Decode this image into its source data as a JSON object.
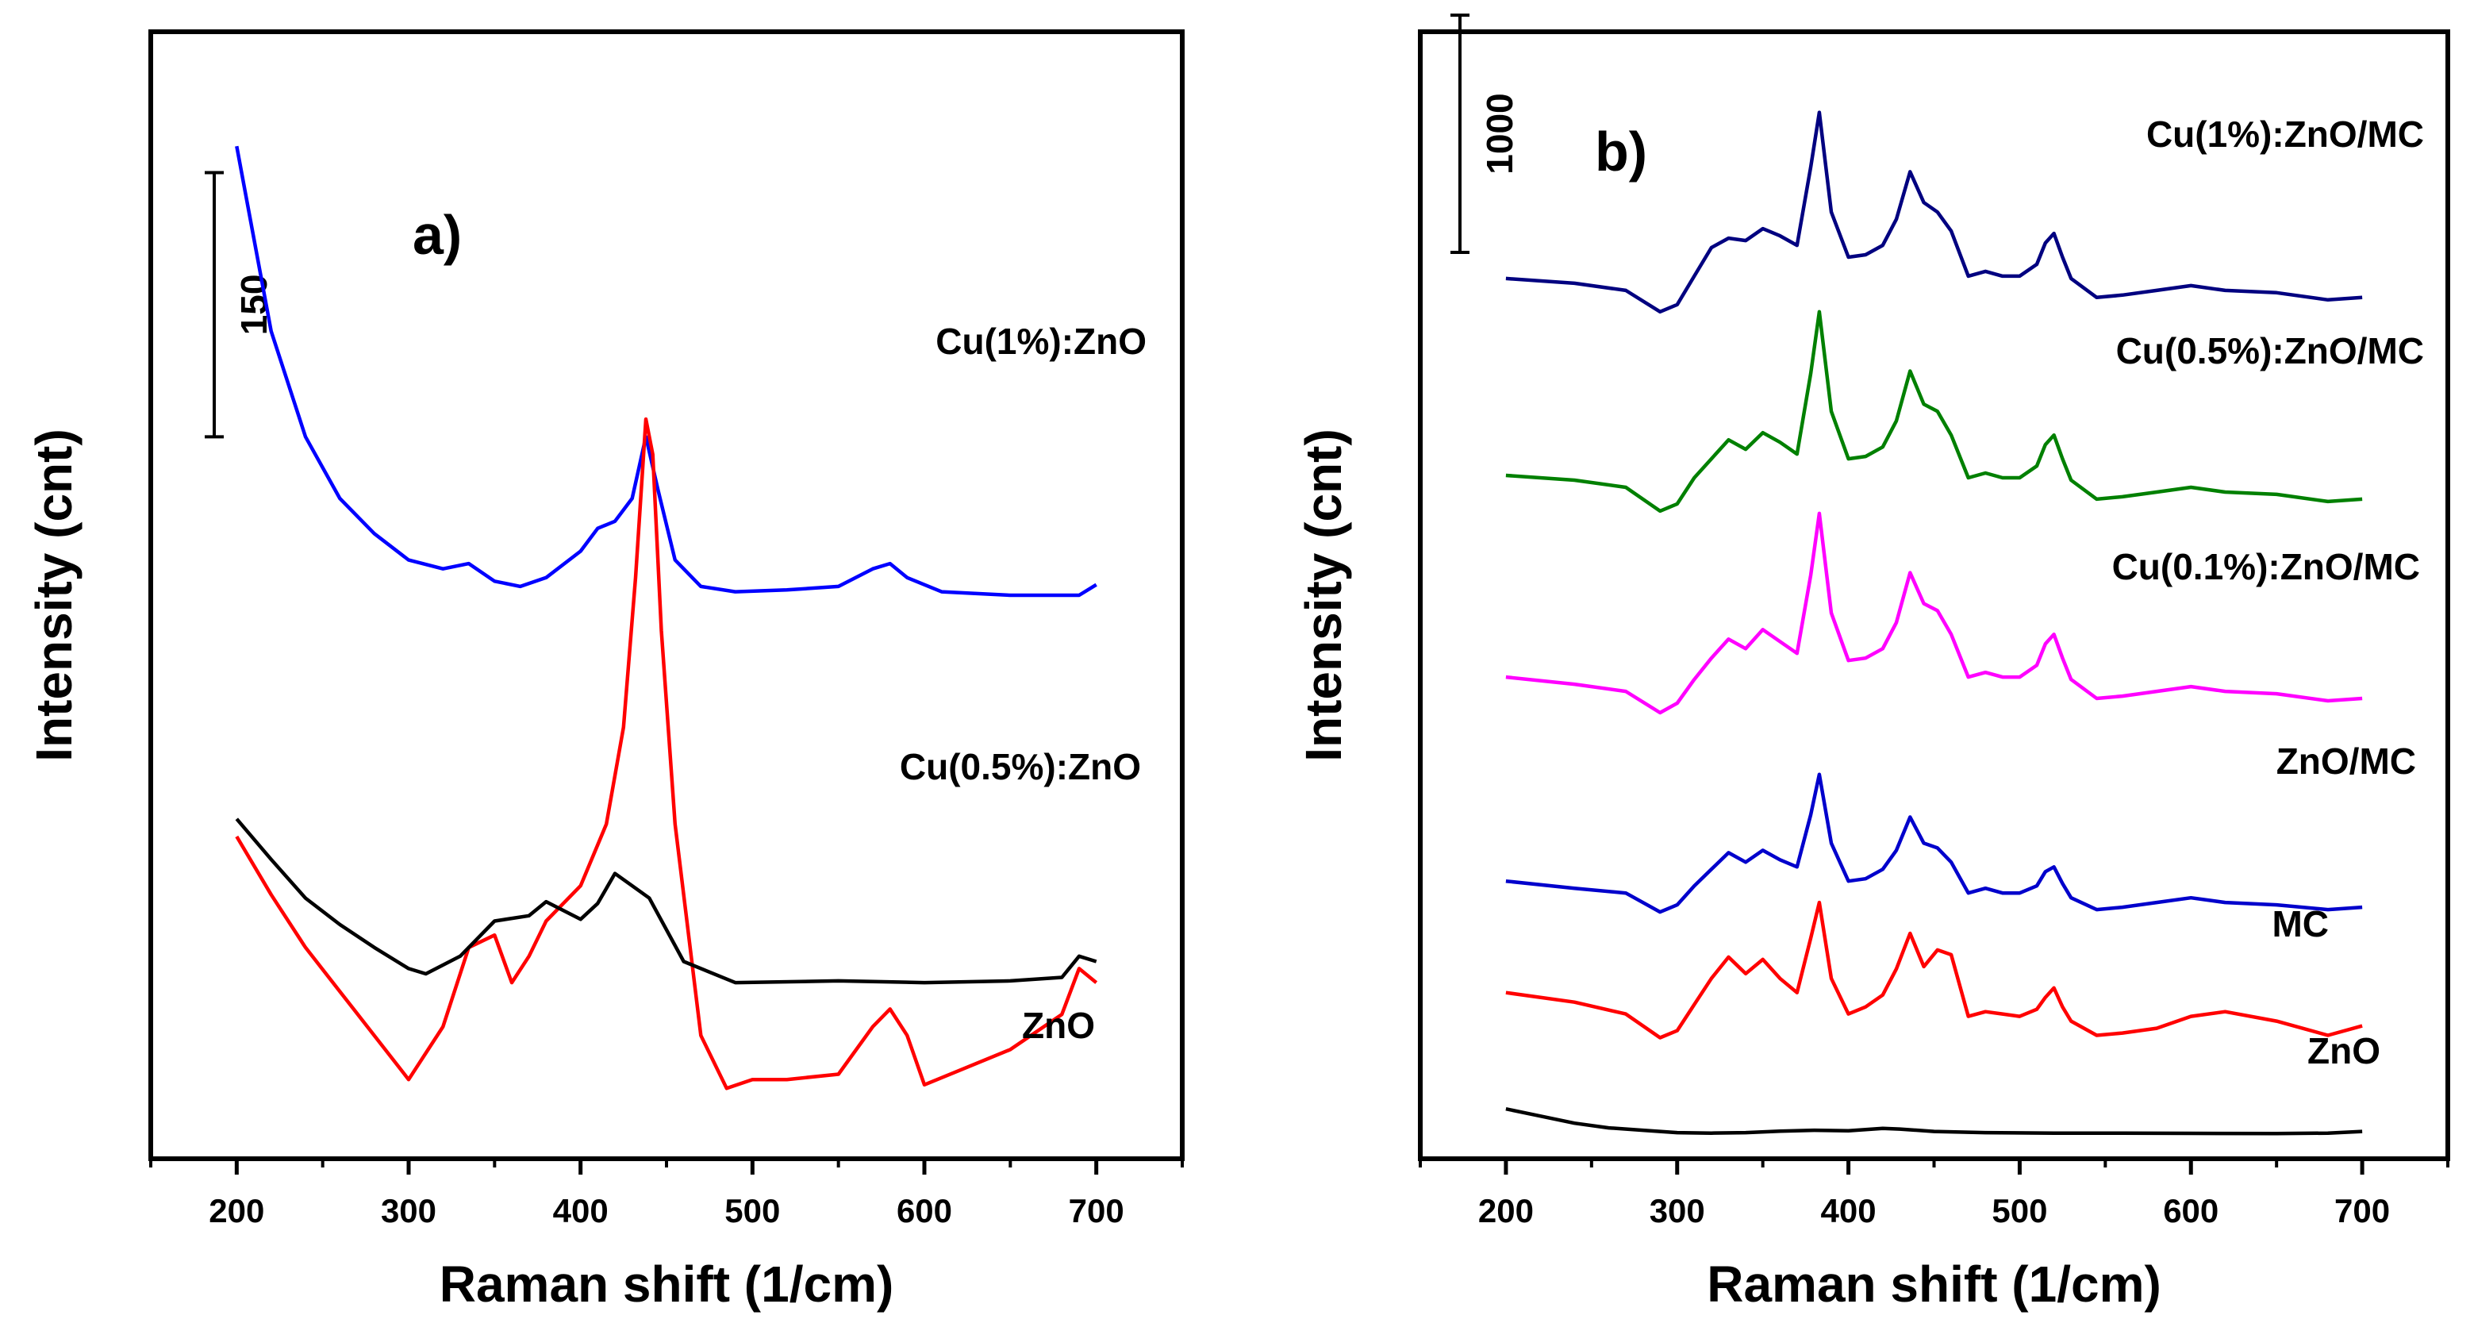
{
  "chart_data": [
    {
      "type": "line",
      "panel_label": "a)",
      "xlabel": "Raman shift (1/cm)",
      "ylabel": "Intensity (cnt)",
      "xlim": [
        150,
        750
      ],
      "xticks": [
        "200",
        "300",
        "400",
        "500",
        "600",
        "700"
      ],
      "yticks": "none (stacked spectra, vertically offset)",
      "scale_bar": {
        "label": "150",
        "value": 150
      },
      "series": [
        {
          "name": "Cu(1%):ZnO",
          "color": "#0000ff",
          "x": [
            200,
            220,
            240,
            260,
            280,
            300,
            320,
            335,
            350,
            365,
            380,
            400,
            410,
            420,
            430,
            438,
            445,
            455,
            470,
            490,
            520,
            550,
            570,
            580,
            590,
            610,
            650,
            690,
            700
          ],
          "y": [
            575,
            470,
            410,
            375,
            355,
            340,
            335,
            338,
            328,
            325,
            330,
            345,
            358,
            362,
            375,
            410,
            380,
            340,
            325,
            322,
            323,
            325,
            335,
            338,
            330,
            322,
            320,
            320,
            326
          ]
        },
        {
          "name": "Cu(0.5%):ZnO",
          "color": "#ff0000",
          "x": [
            200,
            220,
            240,
            260,
            280,
            300,
            320,
            335,
            350,
            360,
            370,
            380,
            400,
            415,
            425,
            432,
            438,
            442,
            447,
            455,
            470,
            485,
            500,
            520,
            550,
            570,
            580,
            590,
            600,
            620,
            650,
            680,
            690,
            700
          ],
          "y": [
            183,
            150,
            120,
            95,
            70,
            45,
            75,
            120,
            127,
            100,
            115,
            135,
            155,
            190,
            245,
            330,
            420,
            400,
            300,
            190,
            70,
            40,
            45,
            45,
            48,
            75,
            85,
            70,
            42,
            50,
            62,
            82,
            108,
            100
          ]
        },
        {
          "name": "ZnO",
          "color": "#000000",
          "x": [
            200,
            220,
            240,
            260,
            280,
            300,
            310,
            330,
            350,
            370,
            380,
            400,
            410,
            420,
            430,
            440,
            460,
            490,
            550,
            600,
            650,
            680,
            690,
            700
          ],
          "y": [
            193,
            170,
            148,
            133,
            120,
            108,
            105,
            115,
            135,
            138,
            146,
            136,
            145,
            162,
            155,
            148,
            112,
            100,
            101,
            100,
            101,
            103,
            115,
            112
          ]
        }
      ]
    },
    {
      "type": "line",
      "panel_label": "b)",
      "xlabel": "Raman shift (1/cm)",
      "ylabel": "Intensity (cnt)",
      "xlim": [
        150,
        750
      ],
      "xticks": [
        "200",
        "300",
        "400",
        "500",
        "600",
        "700"
      ],
      "yticks": "none (stacked spectra, vertically offset)",
      "scale_bar": {
        "label": "1000",
        "value": 1000
      },
      "series": [
        {
          "name": "Cu(1%):ZnO/MC",
          "color": "#000080",
          "x": [
            200,
            240,
            270,
            290,
            300,
            310,
            320,
            330,
            340,
            350,
            360,
            370,
            378,
            383,
            390,
            400,
            410,
            420,
            428,
            436,
            444,
            452,
            460,
            470,
            480,
            490,
            500,
            510,
            515,
            520,
            525,
            530,
            545,
            560,
            580,
            600,
            620,
            650,
            680,
            700
          ],
          "y": [
            3710,
            3690,
            3660,
            3570,
            3600,
            3720,
            3840,
            3880,
            3870,
            3920,
            3890,
            3850,
            4180,
            4410,
            3990,
            3800,
            3810,
            3850,
            3960,
            4160,
            4030,
            3990,
            3910,
            3720,
            3740,
            3720,
            3720,
            3770,
            3860,
            3900,
            3800,
            3710,
            3630,
            3640,
            3660,
            3680,
            3660,
            3650,
            3620,
            3630
          ]
        },
        {
          "name": "Cu(0.5%):ZnO/MC",
          "color": "#008000",
          "x": [
            200,
            240,
            270,
            290,
            300,
            310,
            320,
            330,
            340,
            350,
            360,
            370,
            378,
            383,
            390,
            400,
            410,
            420,
            428,
            436,
            444,
            452,
            460,
            470,
            480,
            490,
            500,
            510,
            515,
            520,
            525,
            530,
            545,
            560,
            580,
            600,
            620,
            650,
            680,
            700
          ],
          "y": [
            2880,
            2860,
            2830,
            2730,
            2760,
            2870,
            2950,
            3030,
            2990,
            3060,
            3020,
            2970,
            3310,
            3570,
            3150,
            2950,
            2960,
            3000,
            3110,
            3320,
            3180,
            3150,
            3050,
            2870,
            2890,
            2870,
            2870,
            2920,
            3010,
            3050,
            2950,
            2860,
            2780,
            2790,
            2810,
            2830,
            2810,
            2800,
            2770,
            2780
          ]
        },
        {
          "name": "Cu(0.1%):ZnO/MC",
          "color": "#ff00ff",
          "x": [
            200,
            240,
            270,
            290,
            300,
            310,
            320,
            330,
            340,
            350,
            360,
            370,
            378,
            383,
            390,
            400,
            410,
            420,
            428,
            436,
            444,
            452,
            460,
            470,
            480,
            490,
            500,
            510,
            515,
            520,
            525,
            530,
            545,
            560,
            580,
            600,
            620,
            650,
            680,
            700
          ],
          "y": [
            2030,
            2000,
            1970,
            1880,
            1920,
            2020,
            2110,
            2190,
            2150,
            2230,
            2180,
            2130,
            2460,
            2720,
            2300,
            2100,
            2110,
            2150,
            2260,
            2470,
            2340,
            2310,
            2210,
            2030,
            2050,
            2030,
            2030,
            2080,
            2170,
            2210,
            2110,
            2020,
            1940,
            1950,
            1970,
            1990,
            1970,
            1960,
            1930,
            1940
          ]
        },
        {
          "name": "ZnO/MC",
          "color": "#0000cc",
          "x": [
            200,
            240,
            270,
            290,
            300,
            310,
            320,
            330,
            340,
            350,
            360,
            370,
            378,
            383,
            390,
            400,
            410,
            420,
            428,
            436,
            444,
            452,
            460,
            470,
            480,
            490,
            500,
            510,
            515,
            520,
            525,
            530,
            545,
            560,
            580,
            600,
            620,
            650,
            680,
            700
          ],
          "y": [
            1170,
            1140,
            1120,
            1040,
            1070,
            1150,
            1220,
            1290,
            1250,
            1300,
            1260,
            1230,
            1450,
            1620,
            1330,
            1170,
            1180,
            1220,
            1300,
            1440,
            1330,
            1310,
            1250,
            1120,
            1140,
            1120,
            1120,
            1150,
            1210,
            1230,
            1160,
            1100,
            1050,
            1060,
            1080,
            1100,
            1080,
            1070,
            1050,
            1060
          ]
        },
        {
          "name": "MC",
          "color": "#ff0000",
          "x": [
            200,
            240,
            270,
            290,
            300,
            310,
            320,
            330,
            340,
            350,
            360,
            370,
            378,
            383,
            390,
            400,
            410,
            420,
            428,
            436,
            444,
            452,
            460,
            470,
            480,
            490,
            500,
            510,
            515,
            520,
            525,
            530,
            545,
            560,
            580,
            600,
            620,
            650,
            680,
            700
          ],
          "y": [
            700,
            660,
            610,
            510,
            540,
            650,
            760,
            850,
            780,
            840,
            760,
            700,
            930,
            1080,
            760,
            610,
            640,
            690,
            800,
            950,
            810,
            880,
            860,
            600,
            620,
            610,
            600,
            630,
            680,
            720,
            640,
            580,
            520,
            530,
            550,
            600,
            620,
            580,
            520,
            560
          ]
        },
        {
          "name": "ZnO",
          "color": "#000000",
          "x": [
            200,
            220,
            240,
            260,
            280,
            300,
            320,
            340,
            360,
            380,
            400,
            420,
            430,
            450,
            480,
            520,
            560,
            600,
            650,
            680,
            700
          ],
          "y": [
            210,
            180,
            150,
            130,
            120,
            110,
            108,
            110,
            116,
            120,
            118,
            128,
            125,
            115,
            110,
            108,
            108,
            107,
            106,
            108,
            115
          ]
        }
      ]
    }
  ]
}
